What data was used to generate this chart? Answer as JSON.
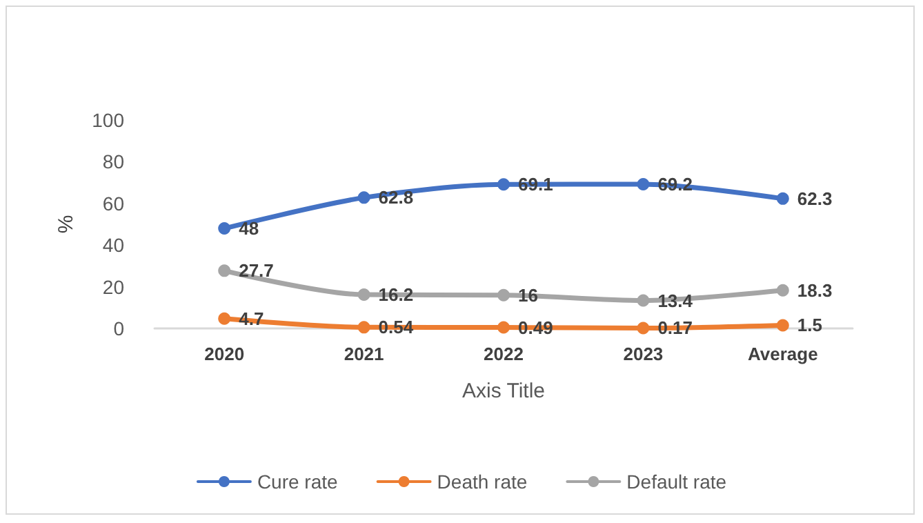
{
  "chart_data": {
    "type": "line",
    "xlabel": "Axis Title",
    "ylabel": "%",
    "categories": [
      "2020",
      "2021",
      "2022",
      "2023",
      "Average"
    ],
    "series": [
      {
        "name": "Cure rate",
        "color": "#4472c4",
        "values": [
          48,
          62.8,
          69.1,
          69.2,
          62.3
        ]
      },
      {
        "name": "Death rate",
        "color": "#ed7d31",
        "values": [
          4.7,
          0.54,
          0.49,
          0.17,
          1.5
        ]
      },
      {
        "name": "Default rate",
        "color": "#a5a5a5",
        "values": [
          27.7,
          16.2,
          16,
          13.4,
          18.3
        ]
      }
    ],
    "ylim": [
      0,
      100
    ],
    "yticks": [
      0,
      20,
      40,
      60,
      80,
      100
    ],
    "grid": false,
    "legend": "bottom",
    "marker": "circle",
    "line_style": "solid",
    "data_labels": true
  }
}
